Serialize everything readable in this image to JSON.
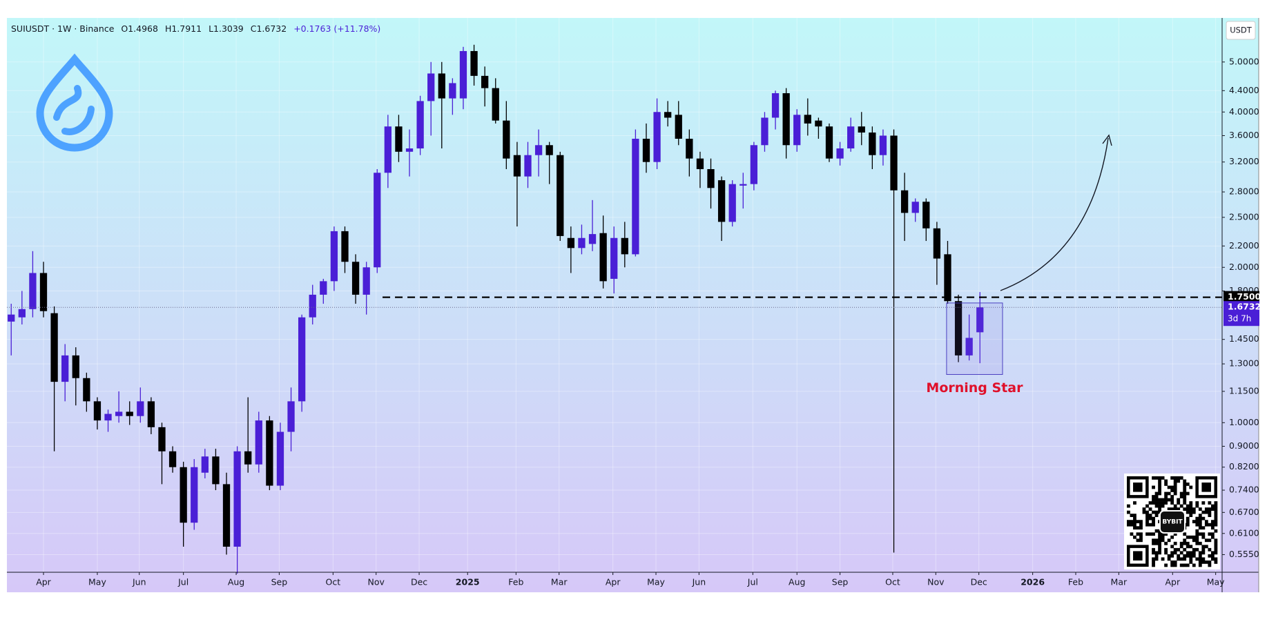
{
  "chart_data": {
    "type": "candlestick",
    "header": {
      "symbol": "SUIUSDT · 1W · Binance",
      "open": "O1.4968",
      "high": "H1.7911",
      "low": "L1.3039",
      "close": "C1.6732",
      "change": "+0.1763 (+11.78%)"
    },
    "currency": "USDT",
    "up_color": "#4a1fd6",
    "down_color": "#000000",
    "log_scale": true,
    "grid": true,
    "ylim": [
      0.513,
      6.03
    ],
    "yticks": [
      {
        "value": 0.555,
        "label": "0.5550"
      },
      {
        "value": 0.61,
        "label": "0.6100"
      },
      {
        "value": 0.67,
        "label": "0.6700"
      },
      {
        "value": 0.74,
        "label": "0.7400"
      },
      {
        "value": 0.82,
        "label": "0.8200"
      },
      {
        "value": 0.9,
        "label": "0.9000"
      },
      {
        "value": 1,
        "label": "1.0000"
      },
      {
        "value": 1.15,
        "label": "1.1500"
      },
      {
        "value": 1.3,
        "label": "1.3000"
      },
      {
        "value": 1.45,
        "label": "1.4500"
      },
      {
        "value": 1.8,
        "label": "1.8000"
      },
      {
        "value": 2,
        "label": "2.0000"
      },
      {
        "value": 2.2,
        "label": "2.2000"
      },
      {
        "value": 2.5,
        "label": "2.5000"
      },
      {
        "value": 2.8,
        "label": "2.8000"
      },
      {
        "value": 3.2,
        "label": "3.2000"
      },
      {
        "value": 3.6,
        "label": "3.6000"
      },
      {
        "value": 4,
        "label": "4.0000"
      },
      {
        "value": 4.4,
        "label": "4.4000"
      },
      {
        "value": 5,
        "label": "5.0000"
      }
    ],
    "xlim": [
      -0.4,
      112.5
    ],
    "xticks": [
      {
        "value": 3.0,
        "label": "Apr"
      },
      {
        "value": 8.0,
        "label": "May"
      },
      {
        "value": 11.9,
        "label": "Jun"
      },
      {
        "value": 16.0,
        "label": "Jul"
      },
      {
        "value": 20.9,
        "label": "Aug"
      },
      {
        "value": 24.9,
        "label": "Sep"
      },
      {
        "value": 29.9,
        "label": "Oct"
      },
      {
        "value": 33.9,
        "label": "Nov"
      },
      {
        "value": 37.9,
        "label": "Dec"
      },
      {
        "value": 42.4,
        "label": "2025"
      },
      {
        "value": 46.9,
        "label": "Feb"
      },
      {
        "value": 50.9,
        "label": "Mar"
      },
      {
        "value": 55.9,
        "label": "Apr"
      },
      {
        "value": 59.9,
        "label": "May"
      },
      {
        "value": 63.9,
        "label": "Jun"
      },
      {
        "value": 68.9,
        "label": "Jul"
      },
      {
        "value": 73.0,
        "label": "Aug"
      },
      {
        "value": 77.0,
        "label": "Sep"
      },
      {
        "value": 81.9,
        "label": "Oct"
      },
      {
        "value": 85.9,
        "label": "Nov"
      },
      {
        "value": 89.9,
        "label": "Dec"
      },
      {
        "value": 94.9,
        "label": "2026"
      },
      {
        "value": 98.9,
        "label": "Feb"
      },
      {
        "value": 102.9,
        "label": "Mar"
      },
      {
        "value": 107.9,
        "label": "Apr"
      },
      {
        "value": 111.9,
        "label": "May"
      }
    ],
    "level": {
      "value": 1.75,
      "label": "1.7500"
    },
    "last_price": {
      "value": 1.6732,
      "label": "1.6732",
      "countdown": "3d 7h"
    },
    "annotation": "Morning Star",
    "watermark": "BYBIT",
    "candles": [
      {
        "open": 1.57,
        "high": 1.7,
        "low": 1.35,
        "close": 1.62
      },
      {
        "open": 1.6,
        "high": 1.8,
        "low": 1.55,
        "close": 1.66
      },
      {
        "open": 1.66,
        "high": 2.15,
        "low": 1.6,
        "close": 1.95
      },
      {
        "open": 1.95,
        "high": 2.05,
        "low": 1.6,
        "close": 1.645
      },
      {
        "open": 1.63,
        "high": 1.68,
        "low": 0.88,
        "close": 1.2
      },
      {
        "open": 1.2,
        "high": 1.42,
        "low": 1.1,
        "close": 1.35
      },
      {
        "open": 1.35,
        "high": 1.4,
        "low": 1.08,
        "close": 1.22
      },
      {
        "open": 1.22,
        "high": 1.25,
        "low": 1.05,
        "close": 1.1
      },
      {
        "open": 1.1,
        "high": 1.12,
        "low": 0.97,
        "close": 1.01
      },
      {
        "open": 1.01,
        "high": 1.06,
        "low": 0.96,
        "close": 1.04
      },
      {
        "open": 1.03,
        "high": 1.15,
        "low": 1.0,
        "close": 1.05
      },
      {
        "open": 1.05,
        "high": 1.1,
        "low": 0.99,
        "close": 1.03
      },
      {
        "open": 1.03,
        "high": 1.17,
        "low": 1.0,
        "close": 1.1
      },
      {
        "open": 1.1,
        "high": 1.12,
        "low": 0.95,
        "close": 0.98
      },
      {
        "open": 0.98,
        "high": 1.0,
        "low": 0.76,
        "close": 0.88
      },
      {
        "open": 0.88,
        "high": 0.9,
        "low": 0.8,
        "close": 0.82
      },
      {
        "open": 0.82,
        "high": 0.84,
        "low": 0.575,
        "close": 0.64
      },
      {
        "open": 0.64,
        "high": 0.85,
        "low": 0.62,
        "close": 0.82
      },
      {
        "open": 0.8,
        "high": 0.89,
        "low": 0.78,
        "close": 0.86
      },
      {
        "open": 0.86,
        "high": 0.89,
        "low": 0.74,
        "close": 0.76
      },
      {
        "open": 0.76,
        "high": 0.8,
        "low": 0.555,
        "close": 0.575
      },
      {
        "open": 0.575,
        "high": 0.9,
        "low": 0.51,
        "close": 0.88
      },
      {
        "open": 0.88,
        "high": 1.12,
        "low": 0.8,
        "close": 0.83
      },
      {
        "open": 0.83,
        "high": 1.05,
        "low": 0.8,
        "close": 1.01
      },
      {
        "open": 1.01,
        "high": 1.03,
        "low": 0.74,
        "close": 0.755
      },
      {
        "open": 0.755,
        "high": 1.0,
        "low": 0.74,
        "close": 0.96
      },
      {
        "open": 0.96,
        "high": 1.17,
        "low": 0.88,
        "close": 1.1
      },
      {
        "open": 1.1,
        "high": 1.62,
        "low": 1.05,
        "close": 1.6
      },
      {
        "open": 1.6,
        "high": 1.85,
        "low": 1.55,
        "close": 1.77
      },
      {
        "open": 1.77,
        "high": 1.9,
        "low": 1.7,
        "close": 1.88
      },
      {
        "open": 1.88,
        "high": 2.4,
        "low": 1.8,
        "close": 2.35
      },
      {
        "open": 2.35,
        "high": 2.4,
        "low": 1.95,
        "close": 2.05
      },
      {
        "open": 2.05,
        "high": 2.12,
        "low": 1.7,
        "close": 1.77
      },
      {
        "open": 1.77,
        "high": 2.05,
        "low": 1.62,
        "close": 2.0
      },
      {
        "open": 2.0,
        "high": 3.1,
        "low": 1.95,
        "close": 3.05
      },
      {
        "open": 3.05,
        "high": 3.95,
        "low": 2.85,
        "close": 3.75
      },
      {
        "open": 3.75,
        "high": 3.95,
        "low": 3.2,
        "close": 3.35
      },
      {
        "open": 3.35,
        "high": 3.7,
        "low": 3.0,
        "close": 3.4
      },
      {
        "open": 3.4,
        "high": 4.3,
        "low": 3.3,
        "close": 4.2
      },
      {
        "open": 4.2,
        "high": 5.0,
        "low": 3.6,
        "close": 4.75
      },
      {
        "open": 4.75,
        "high": 5.0,
        "low": 3.4,
        "close": 4.25
      },
      {
        "open": 4.25,
        "high": 4.65,
        "low": 3.95,
        "close": 4.55
      },
      {
        "open": 4.25,
        "high": 5.35,
        "low": 4.05,
        "close": 5.25
      },
      {
        "open": 5.25,
        "high": 5.4,
        "low": 4.5,
        "close": 4.7
      },
      {
        "open": 4.7,
        "high": 4.9,
        "low": 4.1,
        "close": 4.45
      },
      {
        "open": 4.45,
        "high": 4.65,
        "low": 3.8,
        "close": 3.85
      },
      {
        "open": 3.85,
        "high": 4.2,
        "low": 3.1,
        "close": 3.25
      },
      {
        "open": 3.3,
        "high": 3.5,
        "low": 2.4,
        "close": 3.0
      },
      {
        "open": 3.0,
        "high": 3.5,
        "low": 2.85,
        "close": 3.3
      },
      {
        "open": 3.3,
        "high": 3.7,
        "low": 3.0,
        "close": 3.45
      },
      {
        "open": 3.45,
        "high": 3.5,
        "low": 2.9,
        "close": 3.3
      },
      {
        "open": 3.3,
        "high": 3.35,
        "low": 2.25,
        "close": 2.3
      },
      {
        "open": 2.28,
        "high": 2.4,
        "low": 1.95,
        "close": 2.18
      },
      {
        "open": 2.18,
        "high": 2.42,
        "low": 2.12,
        "close": 2.28
      },
      {
        "open": 2.22,
        "high": 2.7,
        "low": 2.15,
        "close": 2.32
      },
      {
        "open": 2.33,
        "high": 2.52,
        "low": 1.82,
        "close": 1.88
      },
      {
        "open": 1.9,
        "high": 2.4,
        "low": 1.78,
        "close": 2.28
      },
      {
        "open": 2.28,
        "high": 2.45,
        "low": 2.0,
        "close": 2.12
      },
      {
        "open": 2.12,
        "high": 3.7,
        "low": 2.1,
        "close": 3.55
      },
      {
        "open": 3.55,
        "high": 3.8,
        "low": 3.05,
        "close": 3.2
      },
      {
        "open": 3.2,
        "high": 4.25,
        "low": 3.1,
        "close": 4.0
      },
      {
        "open": 4.0,
        "high": 4.2,
        "low": 3.75,
        "close": 3.9
      },
      {
        "open": 3.95,
        "high": 4.2,
        "low": 3.45,
        "close": 3.55
      },
      {
        "open": 3.55,
        "high": 3.7,
        "low": 3.0,
        "close": 3.25
      },
      {
        "open": 3.25,
        "high": 3.35,
        "low": 2.85,
        "close": 3.1
      },
      {
        "open": 3.1,
        "high": 3.25,
        "low": 2.6,
        "close": 2.85
      },
      {
        "open": 2.95,
        "high": 3.0,
        "low": 2.25,
        "close": 2.45
      },
      {
        "open": 2.45,
        "high": 2.95,
        "low": 2.4,
        "close": 2.9
      },
      {
        "open": 2.88,
        "high": 3.05,
        "low": 2.6,
        "close": 2.9
      },
      {
        "open": 2.9,
        "high": 3.5,
        "low": 2.82,
        "close": 3.45
      },
      {
        "open": 3.45,
        "high": 4.0,
        "low": 3.35,
        "close": 3.9
      },
      {
        "open": 3.9,
        "high": 4.4,
        "low": 3.7,
        "close": 4.35
      },
      {
        "open": 4.35,
        "high": 4.45,
        "low": 3.25,
        "close": 3.45
      },
      {
        "open": 3.45,
        "high": 4.05,
        "low": 3.35,
        "close": 3.95
      },
      {
        "open": 3.95,
        "high": 4.25,
        "low": 3.6,
        "close": 3.8
      },
      {
        "open": 3.85,
        "high": 3.9,
        "low": 3.55,
        "close": 3.75
      },
      {
        "open": 3.75,
        "high": 3.8,
        "low": 3.2,
        "close": 3.25
      },
      {
        "open": 3.25,
        "high": 3.5,
        "low": 3.15,
        "close": 3.4
      },
      {
        "open": 3.4,
        "high": 3.9,
        "low": 3.35,
        "close": 3.75
      },
      {
        "open": 3.75,
        "high": 4.0,
        "low": 3.45,
        "close": 3.65
      },
      {
        "open": 3.65,
        "high": 3.75,
        "low": 3.1,
        "close": 3.3
      },
      {
        "open": 3.3,
        "high": 3.7,
        "low": 3.15,
        "close": 3.6
      },
      {
        "open": 3.6,
        "high": 3.7,
        "low": 0.56,
        "close": 2.82
      },
      {
        "open": 2.82,
        "high": 3.05,
        "low": 2.25,
        "close": 2.55
      },
      {
        "open": 2.55,
        "high": 2.72,
        "low": 2.45,
        "close": 2.68
      },
      {
        "open": 2.68,
        "high": 2.72,
        "low": 2.25,
        "close": 2.38
      },
      {
        "open": 2.38,
        "high": 2.45,
        "low": 1.85,
        "close": 2.08
      },
      {
        "open": 2.12,
        "high": 2.25,
        "low": 1.7,
        "close": 1.72
      },
      {
        "open": 1.72,
        "high": 1.77,
        "low": 1.31,
        "close": 1.35
      },
      {
        "open": 1.35,
        "high": 1.62,
        "low": 1.32,
        "close": 1.46
      },
      {
        "open": 1.4968,
        "high": 1.7911,
        "low": 1.3039,
        "close": 1.6732
      }
    ]
  }
}
